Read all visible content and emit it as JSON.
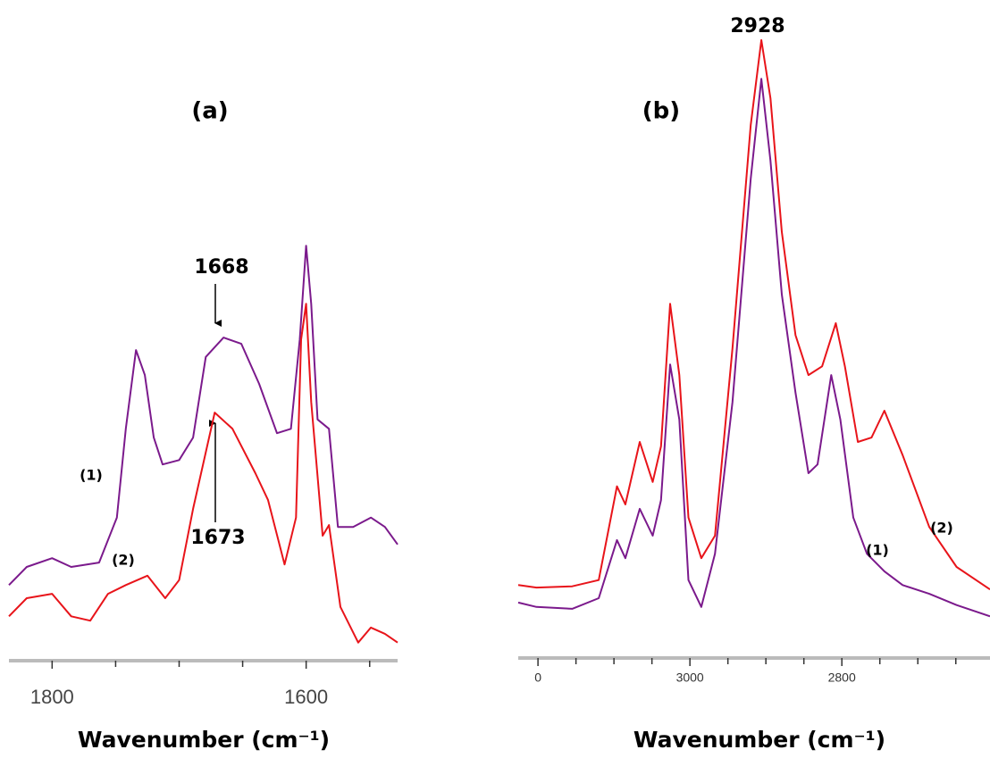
{
  "chart_data": [
    {
      "type": "line",
      "title": "(a)",
      "xlabel": "Wavenumber (cm⁻¹)",
      "xlim": [
        1834,
        1528
      ],
      "ylim": [
        0,
        100
      ],
      "xticks": [
        1800,
        1600
      ],
      "xminorticks": [
        1750,
        1700,
        1650,
        1550
      ],
      "annotations": [
        "1668",
        "1673"
      ],
      "series": [
        {
          "name": "(1)",
          "color": "#7b1a8c",
          "x": [
            1834,
            1820,
            1800,
            1785,
            1763,
            1749,
            1742,
            1734,
            1727,
            1720,
            1713,
            1700,
            1689,
            1679,
            1665,
            1651,
            1637,
            1623,
            1612,
            1605,
            1600,
            1596,
            1591,
            1582,
            1575,
            1563,
            1549,
            1538,
            1528
          ],
          "values": [
            12.1,
            15,
            16.4,
            15,
            15.7,
            22.9,
            37.1,
            49.7,
            45.7,
            35.7,
            31.4,
            32.1,
            35.7,
            48.6,
            51.7,
            50.7,
            44.3,
            36.4,
            37.1,
            51.4,
            66.4,
            57.1,
            38.6,
            37.1,
            21.4,
            21.4,
            22.9,
            21.4,
            18.6
          ]
        },
        {
          "name": "(2)",
          "color": "#e8141a",
          "x": [
            1834,
            1820,
            1800,
            1785,
            1770,
            1756,
            1742,
            1725,
            1711,
            1700,
            1689,
            1672,
            1658,
            1640,
            1630,
            1617,
            1608,
            1604,
            1600,
            1596,
            1587,
            1582,
            1573,
            1559,
            1549,
            1538,
            1528
          ],
          "values": [
            7.1,
            10,
            10.7,
            7.1,
            6.4,
            10.7,
            12.1,
            13.6,
            10,
            12.9,
            24.3,
            39.7,
            37.1,
            30,
            25.7,
            15.4,
            22.9,
            51.4,
            57.1,
            41.4,
            20,
            21.7,
            8.6,
            2.9,
            5.3,
            4.3,
            2.9
          ]
        }
      ]
    },
    {
      "type": "line",
      "title": "(b)",
      "xlabel": "Wavenumber (cm⁻¹)",
      "xlim": [
        3226,
        2605
      ],
      "ylim": [
        0,
        100
      ],
      "xticks": [
        {
          "value": 3200,
          "label": "0"
        },
        3000,
        2800
      ],
      "xminorticks": [
        3150,
        3100,
        3050,
        2950,
        2900,
        2850,
        2750,
        2700,
        2650
      ],
      "annotations": [
        "2928"
      ],
      "series": [
        {
          "name": "(1)",
          "color": "#7b1a8c",
          "x": [
            3226,
            3202,
            3155,
            3120,
            3096,
            3085,
            3066,
            3049,
            3038,
            3026,
            3014,
            3002,
            2985,
            2967,
            2944,
            2920,
            2906,
            2894,
            2879,
            2861,
            2844,
            2832,
            2814,
            2802,
            2785,
            2767,
            2744,
            2720,
            2685,
            2649,
            2605
          ],
          "values": [
            9.3,
            8.6,
            8.3,
            10,
            19.3,
            16.4,
            24.3,
            20,
            25.7,
            47.4,
            38.6,
            12.9,
            8.6,
            17.1,
            41.4,
            77.1,
            93.1,
            80,
            58.6,
            42.9,
            30,
            31.4,
            45.7,
            38.6,
            22.9,
            17.1,
            14.3,
            12.1,
            10.7,
            8.9,
            7.1
          ]
        },
        {
          "name": "(2)",
          "color": "#e8141a",
          "x": [
            3226,
            3202,
            3155,
            3120,
            3096,
            3085,
            3066,
            3049,
            3038,
            3026,
            3014,
            3002,
            2985,
            2967,
            2944,
            2920,
            2906,
            2894,
            2879,
            2861,
            2844,
            2826,
            2808,
            2796,
            2779,
            2761,
            2744,
            2720,
            2685,
            2649,
            2605
          ],
          "values": [
            12.1,
            11.7,
            11.9,
            12.9,
            27.9,
            25,
            35,
            28.6,
            34.3,
            57.1,
            45.7,
            22.9,
            16.4,
            20,
            50,
            85.7,
            99.3,
            90,
            68.6,
            52.1,
            45.7,
            47.1,
            54,
            47.1,
            35,
            35.7,
            40,
            32.9,
            21.4,
            15,
            11.4
          ]
        }
      ]
    }
  ]
}
